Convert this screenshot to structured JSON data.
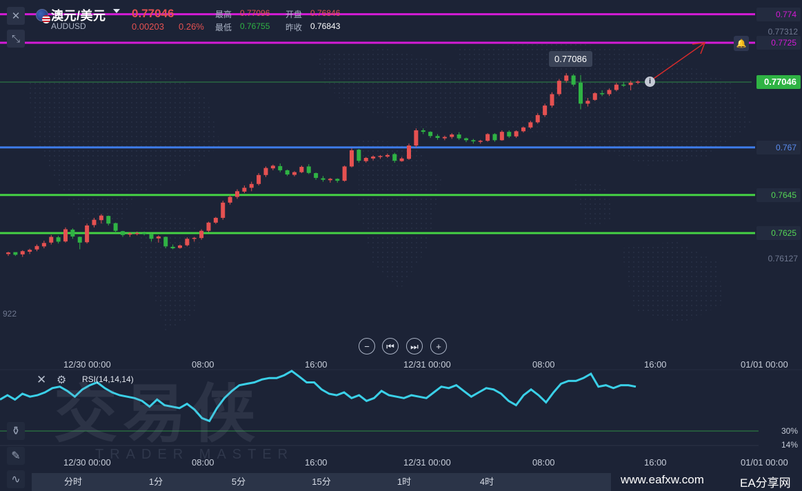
{
  "symbol": {
    "name": "澳元/美元",
    "code": "AUDUSD",
    "last_price": "0.77046",
    "change": "0.00203",
    "change_pct": "0.26%"
  },
  "stats": {
    "high_label": "最高",
    "high": "0.77096",
    "open_label": "开盘",
    "open": "0.76846",
    "low_label": "最低",
    "low": "0.76755",
    "prev_close_label": "昨收",
    "prev_close": "0.76843"
  },
  "price_lines": [
    {
      "value": "0.774",
      "color": "#d41bd6",
      "tag_color": "#d41bd6"
    },
    {
      "value": "0.7725",
      "color": "#d41bd6",
      "tag_color": "#d41bd6"
    },
    {
      "value": "0.767",
      "color": "#3d7be8",
      "tag_color": "#5a8cf0"
    },
    {
      "value": "0.7645",
      "color": "#45d244",
      "tag_color": "#55d655"
    },
    {
      "value": "0.7625",
      "color": "#45d244",
      "tag_color": "#55d655"
    }
  ],
  "current_price_tag": "0.77046",
  "axis_labels": {
    "top": "0.77312",
    "low": "0.76127",
    "left_edge": "922"
  },
  "tooltip": "0.77086",
  "time_axis": [
    "12/30 00:00",
    "08:00",
    "16:00",
    "12/31 00:00",
    "08:00",
    "16:00",
    "01/01 00:00"
  ],
  "rsi": {
    "title": "RSI(14,14,14)",
    "level_30": "30%",
    "level_14": "14%"
  },
  "timeframes": [
    "分时",
    "1分",
    "5分",
    "15分",
    "1时",
    "4时",
    ""
  ],
  "watermark": {
    "brand": "交易侠",
    "brand_sub": "TRADER MASTER",
    "site": "www.eafxw.com",
    "share": "EA分享网"
  },
  "colors": {
    "up": "#e55151",
    "down": "#2fb344",
    "bg": "#1c2336",
    "rsi_line": "#3ad0e8"
  },
  "chart_data": {
    "type": "candlestick",
    "title": "",
    "candles": [
      [
        0.7614,
        0.76152,
        0.7613,
        0.76148
      ],
      [
        0.7615,
        0.76148,
        0.7613,
        0.76136
      ],
      [
        0.76138,
        0.7616,
        0.76125,
        0.76155
      ],
      [
        0.76152,
        0.76168,
        0.7614,
        0.76162
      ],
      [
        0.76164,
        0.7619,
        0.76155,
        0.76182
      ],
      [
        0.7618,
        0.7621,
        0.7617,
        0.76198
      ],
      [
        0.762,
        0.7624,
        0.7619,
        0.7623
      ],
      [
        0.76228,
        0.76236,
        0.76195,
        0.76205
      ],
      [
        0.76206,
        0.7628,
        0.762,
        0.7627
      ],
      [
        0.76268,
        0.76275,
        0.7622,
        0.76232
      ],
      [
        0.7623,
        0.76232,
        0.76165,
        0.762
      ],
      [
        0.76202,
        0.763,
        0.76195,
        0.7629
      ],
      [
        0.76292,
        0.7633,
        0.7628,
        0.7632
      ],
      [
        0.76318,
        0.7635,
        0.763,
        0.76342
      ],
      [
        0.7634,
        0.76342,
        0.7629,
        0.763
      ],
      [
        0.76302,
        0.76305,
        0.7625,
        0.76262
      ],
      [
        0.7626,
        0.76262,
        0.7623,
        0.7624
      ],
      [
        0.76242,
        0.76255,
        0.7623,
        0.76248
      ],
      [
        0.76246,
        0.76258,
        0.76238,
        0.7625
      ],
      [
        0.7625,
        0.76258,
        0.76238,
        0.76244
      ],
      [
        0.76244,
        0.76248,
        0.76205,
        0.7622
      ],
      [
        0.76222,
        0.76238,
        0.762,
        0.76232
      ],
      [
        0.7623,
        0.76232,
        0.7617,
        0.7618
      ],
      [
        0.76178,
        0.7619,
        0.76165,
        0.7617
      ],
      [
        0.76172,
        0.7619,
        0.76168,
        0.76185
      ],
      [
        0.76186,
        0.76228,
        0.7618,
        0.7622
      ],
      [
        0.7622,
        0.7623,
        0.76205,
        0.76225
      ],
      [
        0.76224,
        0.7627,
        0.76215,
        0.76262
      ],
      [
        0.76262,
        0.7631,
        0.76255,
        0.76305
      ],
      [
        0.76305,
        0.76335,
        0.76298,
        0.7633
      ],
      [
        0.7633,
        0.7642,
        0.7632,
        0.7641
      ],
      [
        0.7641,
        0.7645,
        0.764,
        0.7644
      ],
      [
        0.7644,
        0.7648,
        0.7643,
        0.7647
      ],
      [
        0.76468,
        0.765,
        0.7646,
        0.76488
      ],
      [
        0.76488,
        0.7652,
        0.7647,
        0.76508
      ],
      [
        0.76508,
        0.76565,
        0.765,
        0.76555
      ],
      [
        0.76555,
        0.766,
        0.76545,
        0.76592
      ],
      [
        0.7659,
        0.7661,
        0.7658,
        0.76604
      ],
      [
        0.76602,
        0.76616,
        0.7657,
        0.7658
      ],
      [
        0.7658,
        0.76584,
        0.7655,
        0.76558
      ],
      [
        0.76556,
        0.76575,
        0.76548,
        0.7657
      ],
      [
        0.7657,
        0.76605,
        0.76565,
        0.76598
      ],
      [
        0.766,
        0.76612,
        0.7656,
        0.76566
      ],
      [
        0.76565,
        0.76568,
        0.7653,
        0.7654
      ],
      [
        0.76538,
        0.7655,
        0.7652,
        0.7653
      ],
      [
        0.76528,
        0.7654,
        0.76515,
        0.76535
      ],
      [
        0.76535,
        0.76538,
        0.76515,
        0.76525
      ],
      [
        0.76525,
        0.76605,
        0.7652,
        0.766
      ],
      [
        0.766,
        0.76695,
        0.76595,
        0.76685
      ],
      [
        0.76688,
        0.76692,
        0.7662,
        0.7663
      ],
      [
        0.76628,
        0.7665,
        0.7662,
        0.76645
      ],
      [
        0.76642,
        0.76658,
        0.76632,
        0.76652
      ],
      [
        0.7665,
        0.7666,
        0.7664,
        0.76655
      ],
      [
        0.76652,
        0.76668,
        0.76645,
        0.7666
      ],
      [
        0.76665,
        0.76672,
        0.7662,
        0.7663
      ],
      [
        0.76628,
        0.7665,
        0.76625,
        0.76642
      ],
      [
        0.7664,
        0.7672,
        0.76635,
        0.7671
      ],
      [
        0.7671,
        0.768,
        0.767,
        0.7679
      ],
      [
        0.7679,
        0.768,
        0.7677,
        0.76782
      ],
      [
        0.76782,
        0.76785,
        0.7675,
        0.7676
      ],
      [
        0.7676,
        0.7677,
        0.7674,
        0.7675
      ],
      [
        0.76748,
        0.76762,
        0.76738,
        0.76755
      ],
      [
        0.76755,
        0.76775,
        0.76745,
        0.76768
      ],
      [
        0.76768,
        0.7678,
        0.7674,
        0.76748
      ],
      [
        0.76748,
        0.76752,
        0.76728,
        0.76738
      ],
      [
        0.76738,
        0.76745,
        0.7672,
        0.76732
      ],
      [
        0.7673,
        0.7674,
        0.7672,
        0.76735
      ],
      [
        0.76735,
        0.76775,
        0.7673,
        0.7677
      ],
      [
        0.7677,
        0.76775,
        0.7673,
        0.76738
      ],
      [
        0.76738,
        0.7679,
        0.76735,
        0.76782
      ],
      [
        0.76782,
        0.7679,
        0.7675,
        0.76758
      ],
      [
        0.76758,
        0.7679,
        0.7675,
        0.76785
      ],
      [
        0.76785,
        0.7681,
        0.76778,
        0.76805
      ],
      [
        0.76805,
        0.7684,
        0.76798,
        0.76832
      ],
      [
        0.76832,
        0.7688,
        0.76825,
        0.7687
      ],
      [
        0.7687,
        0.7693,
        0.7686,
        0.7692
      ],
      [
        0.7692,
        0.7699,
        0.7691,
        0.7698
      ],
      [
        0.7698,
        0.7706,
        0.7697,
        0.7705
      ],
      [
        0.7705,
        0.7709,
        0.7704,
        0.77078
      ],
      [
        0.77078,
        0.77086,
        0.7702,
        0.7703
      ],
      [
        0.7704,
        0.7708,
        0.769,
        0.7693
      ],
      [
        0.7693,
        0.7696,
        0.76915,
        0.76945
      ],
      [
        0.7695,
        0.7699,
        0.76945,
        0.76985
      ],
      [
        0.76985,
        0.77,
        0.7697,
        0.7698
      ],
      [
        0.7698,
        0.7701,
        0.7697,
        0.77002
      ],
      [
        0.77002,
        0.7704,
        0.76995,
        0.7703
      ],
      [
        0.7703,
        0.77045,
        0.77018,
        0.77028
      ],
      [
        0.77028,
        0.7705,
        0.77,
        0.7704
      ],
      [
        0.7704,
        0.77052,
        0.77032,
        0.77046
      ]
    ],
    "rsi": [
      52,
      55,
      52,
      56,
      54,
      55,
      57,
      60,
      61,
      58,
      54,
      59,
      62,
      64,
      60,
      57,
      55,
      54,
      53,
      51,
      47,
      52,
      48,
      47,
      46,
      49,
      45,
      39,
      37,
      46,
      53,
      58,
      62,
      63,
      64,
      66,
      67,
      67,
      69,
      72,
      68,
      64,
      64,
      59,
      56,
      55,
      57,
      53,
      55,
      51,
      53,
      58,
      55,
      54,
      53,
      55,
      54,
      53,
      57,
      61,
      60,
      62,
      58,
      54,
      57,
      60,
      59,
      56,
      51,
      48,
      55,
      59,
      55,
      50,
      57,
      63,
      65,
      65,
      67,
      70,
      61,
      62,
      60,
      62,
      62,
      61
    ],
    "rsi_levels": [
      30,
      14
    ],
    "y_labels": [
      "0.774",
      "0.7725",
      "0.77312",
      "0.767",
      "0.7645",
      "0.7625",
      "0.76127"
    ]
  }
}
